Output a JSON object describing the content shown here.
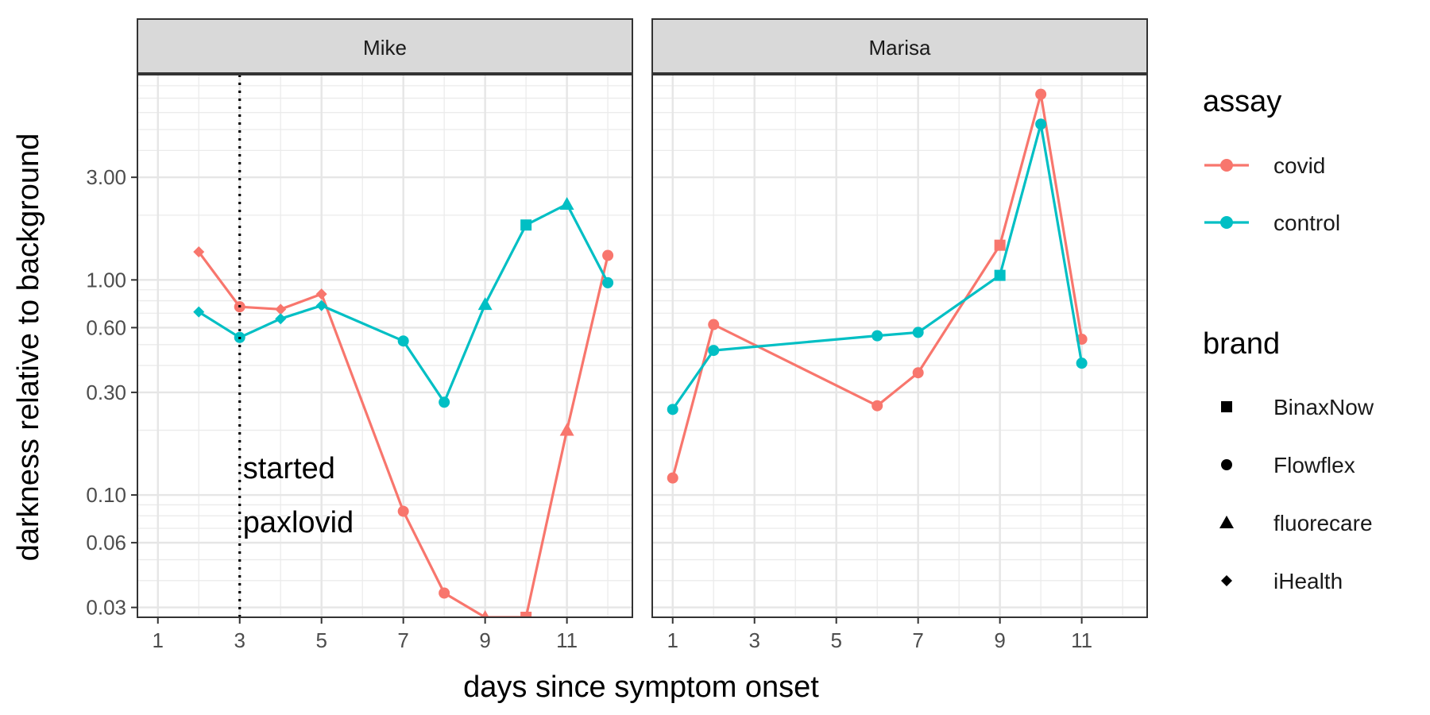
{
  "chart_data": {
    "type": "line",
    "facets": [
      "Mike",
      "Marisa"
    ],
    "xlabel": "days since symptom onset",
    "ylabel": "darkness relative to background",
    "x_ticks": [
      1,
      3,
      5,
      7,
      9,
      11
    ],
    "xlim": [
      0.5,
      12.6
    ],
    "y_scale": "log",
    "y_ticks": [
      0.03,
      0.06,
      0.1,
      0.3,
      0.6,
      1.0,
      3.0
    ],
    "y_tick_labels": [
      "0.03",
      "0.06",
      "0.10",
      "0.30",
      "0.60",
      "1.00",
      "3.00"
    ],
    "ylim": [
      0.027,
      9.0
    ],
    "grid": true,
    "legend_position": "right",
    "legends": {
      "color": {
        "title": "assay",
        "entries": [
          {
            "label": "covid",
            "color": "#F8766D"
          },
          {
            "label": "control",
            "color": "#00BFC4"
          }
        ]
      },
      "shape": {
        "title": "brand",
        "entries": [
          {
            "label": "BinaxNow",
            "shape": "square"
          },
          {
            "label": "Flowflex",
            "shape": "circle"
          },
          {
            "label": "fluorecare",
            "shape": "triangle"
          },
          {
            "label": "iHealth",
            "shape": "diamond"
          }
        ]
      }
    },
    "annotations": [
      {
        "facet": "Mike",
        "type": "vline",
        "x": 3,
        "style": "dotted"
      },
      {
        "facet": "Mike",
        "type": "text",
        "lines": [
          "started",
          "paxlovid"
        ]
      }
    ],
    "series": [
      {
        "facet": "Mike",
        "assay": "covid",
        "points": [
          {
            "x": 2,
            "y": 1.35,
            "brand": "iHealth"
          },
          {
            "x": 3,
            "y": 0.75,
            "brand": "Flowflex"
          },
          {
            "x": 4,
            "y": 0.73,
            "brand": "iHealth"
          },
          {
            "x": 5,
            "y": 0.86,
            "brand": "iHealth"
          },
          {
            "x": 7,
            "y": 0.084,
            "brand": "Flowflex"
          },
          {
            "x": 8,
            "y": 0.035,
            "brand": "Flowflex"
          },
          {
            "x": 9,
            "y": 0.027,
            "brand": "fluorecare"
          },
          {
            "x": 10,
            "y": 0.027,
            "brand": "BinaxNow"
          },
          {
            "x": 11,
            "y": 0.2,
            "brand": "fluorecare"
          },
          {
            "x": 12,
            "y": 1.3,
            "brand": "Flowflex"
          }
        ]
      },
      {
        "facet": "Mike",
        "assay": "control",
        "points": [
          {
            "x": 2,
            "y": 0.71,
            "brand": "iHealth"
          },
          {
            "x": 3,
            "y": 0.54,
            "brand": "Flowflex"
          },
          {
            "x": 4,
            "y": 0.66,
            "brand": "iHealth"
          },
          {
            "x": 5,
            "y": 0.76,
            "brand": "iHealth"
          },
          {
            "x": 7,
            "y": 0.52,
            "brand": "Flowflex"
          },
          {
            "x": 8,
            "y": 0.27,
            "brand": "Flowflex"
          },
          {
            "x": 9,
            "y": 0.77,
            "brand": "fluorecare"
          },
          {
            "x": 10,
            "y": 1.8,
            "brand": "BinaxNow"
          },
          {
            "x": 11,
            "y": 2.25,
            "brand": "fluorecare"
          },
          {
            "x": 12,
            "y": 0.97,
            "brand": "Flowflex"
          }
        ]
      },
      {
        "facet": "Marisa",
        "assay": "covid",
        "points": [
          {
            "x": 1,
            "y": 0.12,
            "brand": "Flowflex"
          },
          {
            "x": 2,
            "y": 0.62,
            "brand": "Flowflex"
          },
          {
            "x": 6,
            "y": 0.26,
            "brand": "Flowflex"
          },
          {
            "x": 7,
            "y": 0.37,
            "brand": "Flowflex"
          },
          {
            "x": 9,
            "y": 1.45,
            "brand": "BinaxNow"
          },
          {
            "x": 10,
            "y": 7.3,
            "brand": "Flowflex"
          },
          {
            "x": 11,
            "y": 0.53,
            "brand": "Flowflex"
          }
        ]
      },
      {
        "facet": "Marisa",
        "assay": "control",
        "points": [
          {
            "x": 1,
            "y": 0.25,
            "brand": "Flowflex"
          },
          {
            "x": 2,
            "y": 0.47,
            "brand": "Flowflex"
          },
          {
            "x": 6,
            "y": 0.55,
            "brand": "Flowflex"
          },
          {
            "x": 7,
            "y": 0.57,
            "brand": "Flowflex"
          },
          {
            "x": 9,
            "y": 1.05,
            "brand": "BinaxNow"
          },
          {
            "x": 10,
            "y": 5.3,
            "brand": "Flowflex"
          },
          {
            "x": 11,
            "y": 0.41,
            "brand": "Flowflex"
          }
        ]
      }
    ]
  }
}
